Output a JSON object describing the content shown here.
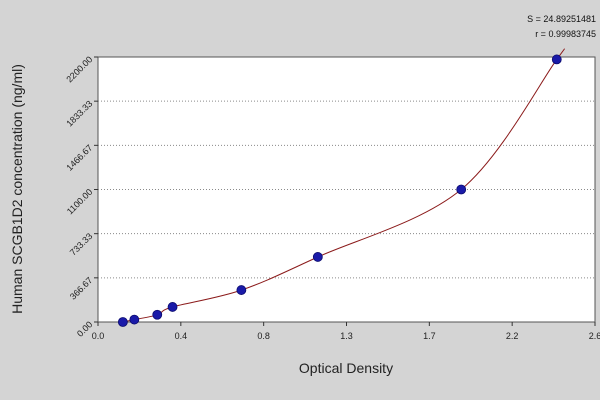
{
  "chart_data": {
    "type": "scatter",
    "title": "",
    "xlabel": "Optical Density",
    "ylabel": "Human SCGB1D2 concentration (ng/ml)",
    "xlim": [
      0.0,
      2.6
    ],
    "ylim": [
      0.0,
      2200.0
    ],
    "x_ticks": [
      "0.0",
      "0.4",
      "0.8",
      "1.3",
      "1.7",
      "2.2",
      "2.6"
    ],
    "y_ticks": [
      "0.00",
      "366.67",
      "733.33",
      "1100.00",
      "1466.67",
      "1833.33",
      "2200.00"
    ],
    "grid": true,
    "grid_axis": "y",
    "stats": [
      "S = 24.89251481",
      "r = 0.99983745"
    ],
    "colors": {
      "points": "#1a1aa8",
      "curve": "#8b1a1a",
      "background": "#d4d4d4",
      "plot_area": "#ffffff"
    },
    "series": [
      {
        "points": [
          {
            "x": 0.13,
            "y": 0
          },
          {
            "x": 0.19,
            "y": 20
          },
          {
            "x": 0.31,
            "y": 60
          },
          {
            "x": 0.39,
            "y": 125
          },
          {
            "x": 0.75,
            "y": 265
          },
          {
            "x": 1.15,
            "y": 540
          },
          {
            "x": 1.9,
            "y": 1100
          },
          {
            "x": 2.4,
            "y": 2180
          }
        ]
      }
    ]
  }
}
